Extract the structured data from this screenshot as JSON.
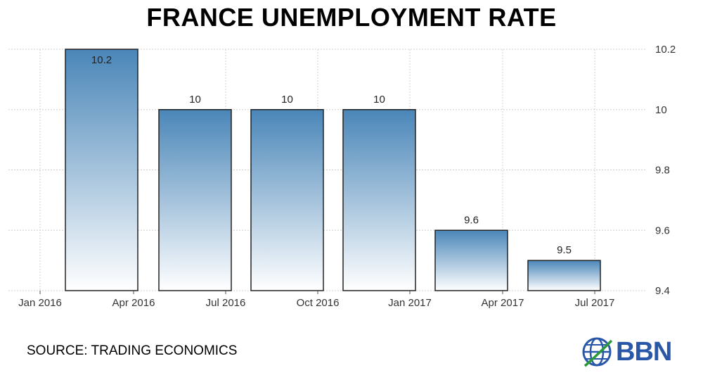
{
  "title": "FRANCE UNEMPLOYMENT RATE",
  "source": "SOURCE: TRADING ECONOMICS",
  "logo": {
    "name": "BBN",
    "icon": "globe-icon"
  },
  "colors": {
    "bar_top": "#4a86b8",
    "bar_bottom": "#ffffff",
    "bar_stroke": "#222222",
    "grid": "#d8d8d8"
  },
  "chart_data": {
    "type": "bar",
    "title": "FRANCE UNEMPLOYMENT RATE",
    "xlabel": "",
    "ylabel": "",
    "ylim": [
      9.4,
      10.2
    ],
    "y_ticks": [
      "10.2",
      "10",
      "9.8",
      "9.6",
      "9.4"
    ],
    "x_ticks": [
      "Jan 2016",
      "Apr 2016",
      "Jul 2016",
      "Oct 2016",
      "Jan 2017",
      "Apr 2017",
      "Jul 2017"
    ],
    "bars": [
      {
        "period": "Q1 2016",
        "value": 10.2,
        "label": "10.2"
      },
      {
        "period": "Q2 2016",
        "value": 10.0,
        "label": "10"
      },
      {
        "period": "Q3 2016",
        "value": 10.0,
        "label": "10"
      },
      {
        "period": "Q4 2016",
        "value": 10.0,
        "label": "10"
      },
      {
        "period": "Q1 2017",
        "value": 9.6,
        "label": "9.6"
      },
      {
        "period": "Q2 2017",
        "value": 9.5,
        "label": "9.5"
      }
    ],
    "grid": true,
    "y_axis_position": "right"
  }
}
